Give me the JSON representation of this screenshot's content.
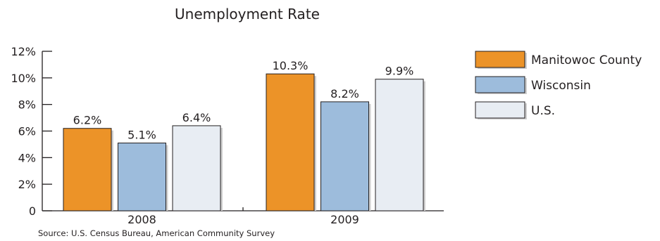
{
  "chart_data": {
    "type": "bar",
    "title": "Unemployment Rate",
    "categories": [
      "2008",
      "2009"
    ],
    "series": [
      {
        "name": "Manitowoc County",
        "values": [
          6.2,
          10.3
        ],
        "labels": [
          "6.2%",
          "10.3%"
        ],
        "color": "#ec9328"
      },
      {
        "name": "Wisconsin",
        "values": [
          5.1,
          8.2
        ],
        "labels": [
          "5.1%",
          "8.2%"
        ],
        "color": "#9dbcdc"
      },
      {
        "name": "U.S.",
        "values": [
          6.4,
          9.9
        ],
        "labels": [
          "6.4%",
          "9.9%"
        ],
        "color": "#e8edf3"
      }
    ],
    "ylim": [
      0,
      12
    ],
    "yticks": [
      0,
      2,
      4,
      6,
      8,
      10,
      12
    ],
    "ytick_labels": [
      "0",
      "2%",
      "4%",
      "6%",
      "8%",
      "10%",
      "12%"
    ],
    "xlabel": "",
    "ylabel": "",
    "legend_position": "right",
    "grid": false,
    "source": "Source:  U.S. Census Bureau, American Community Survey"
  }
}
